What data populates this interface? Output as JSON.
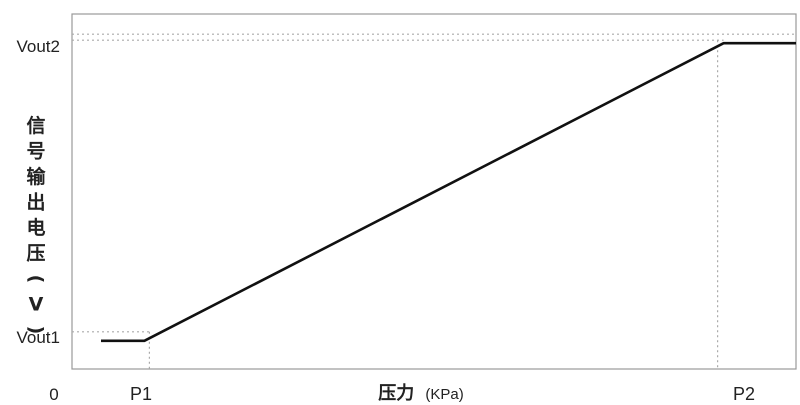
{
  "chart_data": {
    "type": "line",
    "title": "",
    "xlabel_main": "压力",
    "xlabel_unit": "(KPa)",
    "ylabel": "信号输出电压(V)",
    "x_ticks": [
      "0",
      "P1",
      "P2"
    ],
    "y_ticks": [
      "Vout1",
      "Vout2"
    ],
    "xlim": [
      0,
      10
    ],
    "ylim": [
      0,
      10
    ],
    "grid": false,
    "series": [
      {
        "points": [
          {
            "x": 0.4,
            "y": 1.0
          },
          {
            "x": 1.0,
            "y": 1.0
          },
          {
            "x": 9.0,
            "y": 9.0
          },
          {
            "x": 10.0,
            "y": 9.0
          }
        ]
      }
    ],
    "reference_lines": [
      {
        "at": "P1",
        "x": 1.0,
        "y": 1.0
      },
      {
        "at": "P2",
        "x": 9.0,
        "y": 9.0
      }
    ],
    "colors": {
      "line": "#111111",
      "frame": "#999999",
      "guide": "#aaaaaa",
      "text": "#222222"
    }
  }
}
